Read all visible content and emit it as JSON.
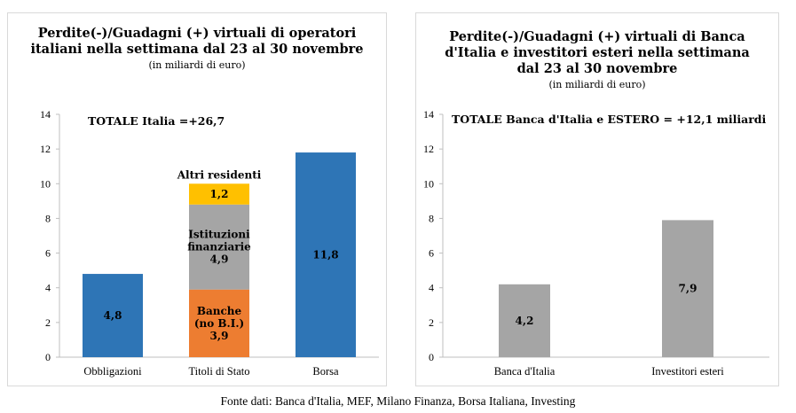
{
  "footer": "Fonte dati: Banca d'Italia, MEF, Milano Finanza, Borsa Italiana, Investing",
  "chart_data": [
    {
      "type": "bar",
      "stacked": true,
      "title": "Perdite(-)/Guadagni (+) virtuali di operatori\nitaliani nella settimana dal 23 al 30 novembre",
      "subtitle": "(in miliardi di euro)",
      "annotation": "TOTALE  Italia =+26,7",
      "categories": [
        "Obbligazioni",
        "Titoli di Stato",
        "Borsa"
      ],
      "ylim": [
        0,
        14
      ],
      "yticks": [
        0,
        2,
        4,
        6,
        8,
        10,
        12,
        14
      ],
      "grid": false,
      "series": [
        {
          "name": "Banche (no B.I.)",
          "color": "#ED7D31",
          "values": [
            null,
            3.9,
            null
          ],
          "labels": [
            null,
            "Banche\n(no B.I.)\n3,9",
            null
          ]
        },
        {
          "name": "Istituzioni finanziarie",
          "color": "#A5A5A5",
          "values": [
            null,
            4.9,
            null
          ],
          "labels": [
            null,
            "Istituzioni\nfinanziarie\n4,9",
            null
          ]
        },
        {
          "name": "Altri residenti",
          "color": "#FFC000",
          "values": [
            null,
            1.2,
            null
          ],
          "labels": [
            null,
            "1,2",
            null
          ]
        },
        {
          "color": "#2E75B6",
          "values": [
            4.8,
            null,
            11.8
          ],
          "labels": [
            "4,8",
            null,
            "11,8"
          ]
        }
      ],
      "outside_labels": [
        {
          "category": "Titoli di Stato",
          "text": "Altri residenti"
        }
      ]
    },
    {
      "type": "bar",
      "title": "Perdite(-)/Guadagni (+)  virtuali di Banca\nd'Italia e investitori esteri  nella settimana\ndal 23 al 30 novembre",
      "subtitle": "(in miliardi di euro)",
      "annotation": "TOTALE Banca d'Italia e ESTERO = +12,1 miliardi",
      "categories": [
        "Banca d'Italia",
        "Investitori esteri"
      ],
      "ylim": [
        0,
        14
      ],
      "yticks": [
        0,
        2,
        4,
        6,
        8,
        10,
        12,
        14
      ],
      "grid": false,
      "series": [
        {
          "color": "#A5A5A5",
          "values": [
            4.2,
            7.9
          ],
          "labels": [
            "4,2",
            "7,9"
          ]
        }
      ]
    }
  ]
}
